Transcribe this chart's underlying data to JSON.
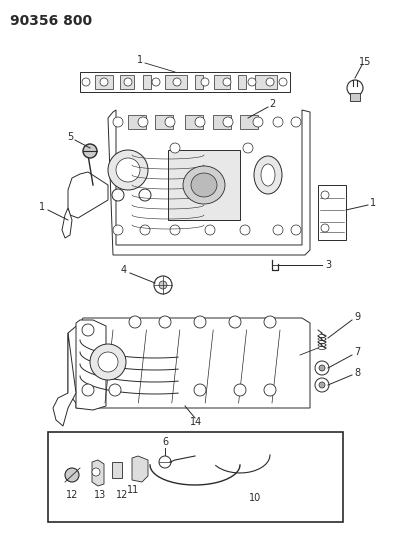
{
  "title": "90356 800",
  "bg_color": "#ffffff",
  "line_color": "#2a2a2a",
  "title_fontsize": 10,
  "title_fontweight": "bold"
}
